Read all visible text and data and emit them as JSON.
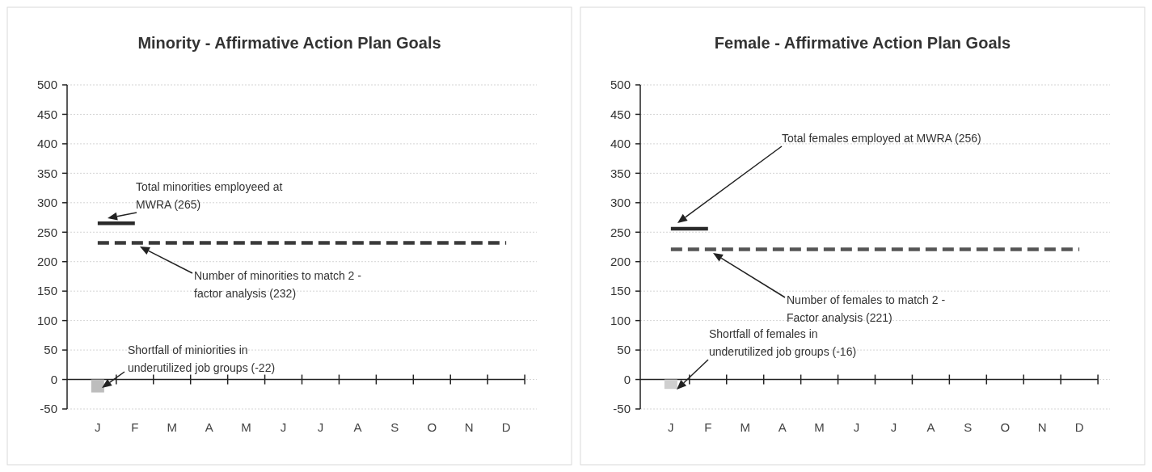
{
  "chart_data": [
    {
      "type": "line",
      "title": "Minority - Affirmative Action Plan Goals",
      "categories": [
        "J",
        "F",
        "M",
        "A",
        "M",
        "J",
        "J",
        "A",
        "S",
        "O",
        "N",
        "D"
      ],
      "ylim": [
        -50,
        500
      ],
      "yticks": [
        -50,
        0,
        50,
        100,
        150,
        200,
        250,
        300,
        350,
        400,
        450,
        500
      ],
      "grid": "y",
      "series": [
        {
          "type": "bar",
          "color": "#bdbdbd",
          "values": [
            -22,
            null,
            null,
            null,
            null,
            null,
            null,
            null,
            null,
            null,
            null,
            null
          ]
        },
        {
          "color": "#2a2a2a",
          "line_style": "solid",
          "values": [
            265,
            265,
            null,
            null,
            null,
            null,
            null,
            null,
            null,
            null,
            null,
            null
          ]
        },
        {
          "color": "#3a3a3a",
          "line_style": "dashed",
          "values": [
            232,
            232,
            232,
            232,
            232,
            232,
            232,
            232,
            232,
            232,
            232,
            232
          ]
        }
      ],
      "annotations": [
        "Total minorities employeed at\nMWRA (265)",
        "Number of minorities to match 2 -\nfactor analysis (232)",
        "Shortfall of miniorities in\nunderutilized job groups (-22)"
      ]
    },
    {
      "type": "line",
      "title": "Female - Affirmative Action Plan Goals",
      "categories": [
        "J",
        "F",
        "M",
        "A",
        "M",
        "J",
        "J",
        "A",
        "S",
        "O",
        "N",
        "D"
      ],
      "ylim": [
        -50,
        500
      ],
      "yticks": [
        -50,
        0,
        50,
        100,
        150,
        200,
        250,
        300,
        350,
        400,
        450,
        500
      ],
      "grid": "y",
      "series": [
        {
          "type": "bar",
          "color": "#cfcfcf",
          "values": [
            -16,
            null,
            null,
            null,
            null,
            null,
            null,
            null,
            null,
            null,
            null,
            null
          ]
        },
        {
          "color": "#2a2a2a",
          "line_style": "solid",
          "values": [
            256,
            256,
            null,
            null,
            null,
            null,
            null,
            null,
            null,
            null,
            null,
            null
          ]
        },
        {
          "color": "#555555",
          "line_style": "dashed",
          "values": [
            221,
            221,
            221,
            221,
            221,
            221,
            221,
            221,
            221,
            221,
            221,
            221
          ]
        }
      ],
      "annotations": [
        "Total females employed at MWRA (256)",
        "Number of females to match 2 -\nFactor analysis (221)",
        "Shortfall of females in\nunderutilized job groups (-16)"
      ]
    }
  ]
}
